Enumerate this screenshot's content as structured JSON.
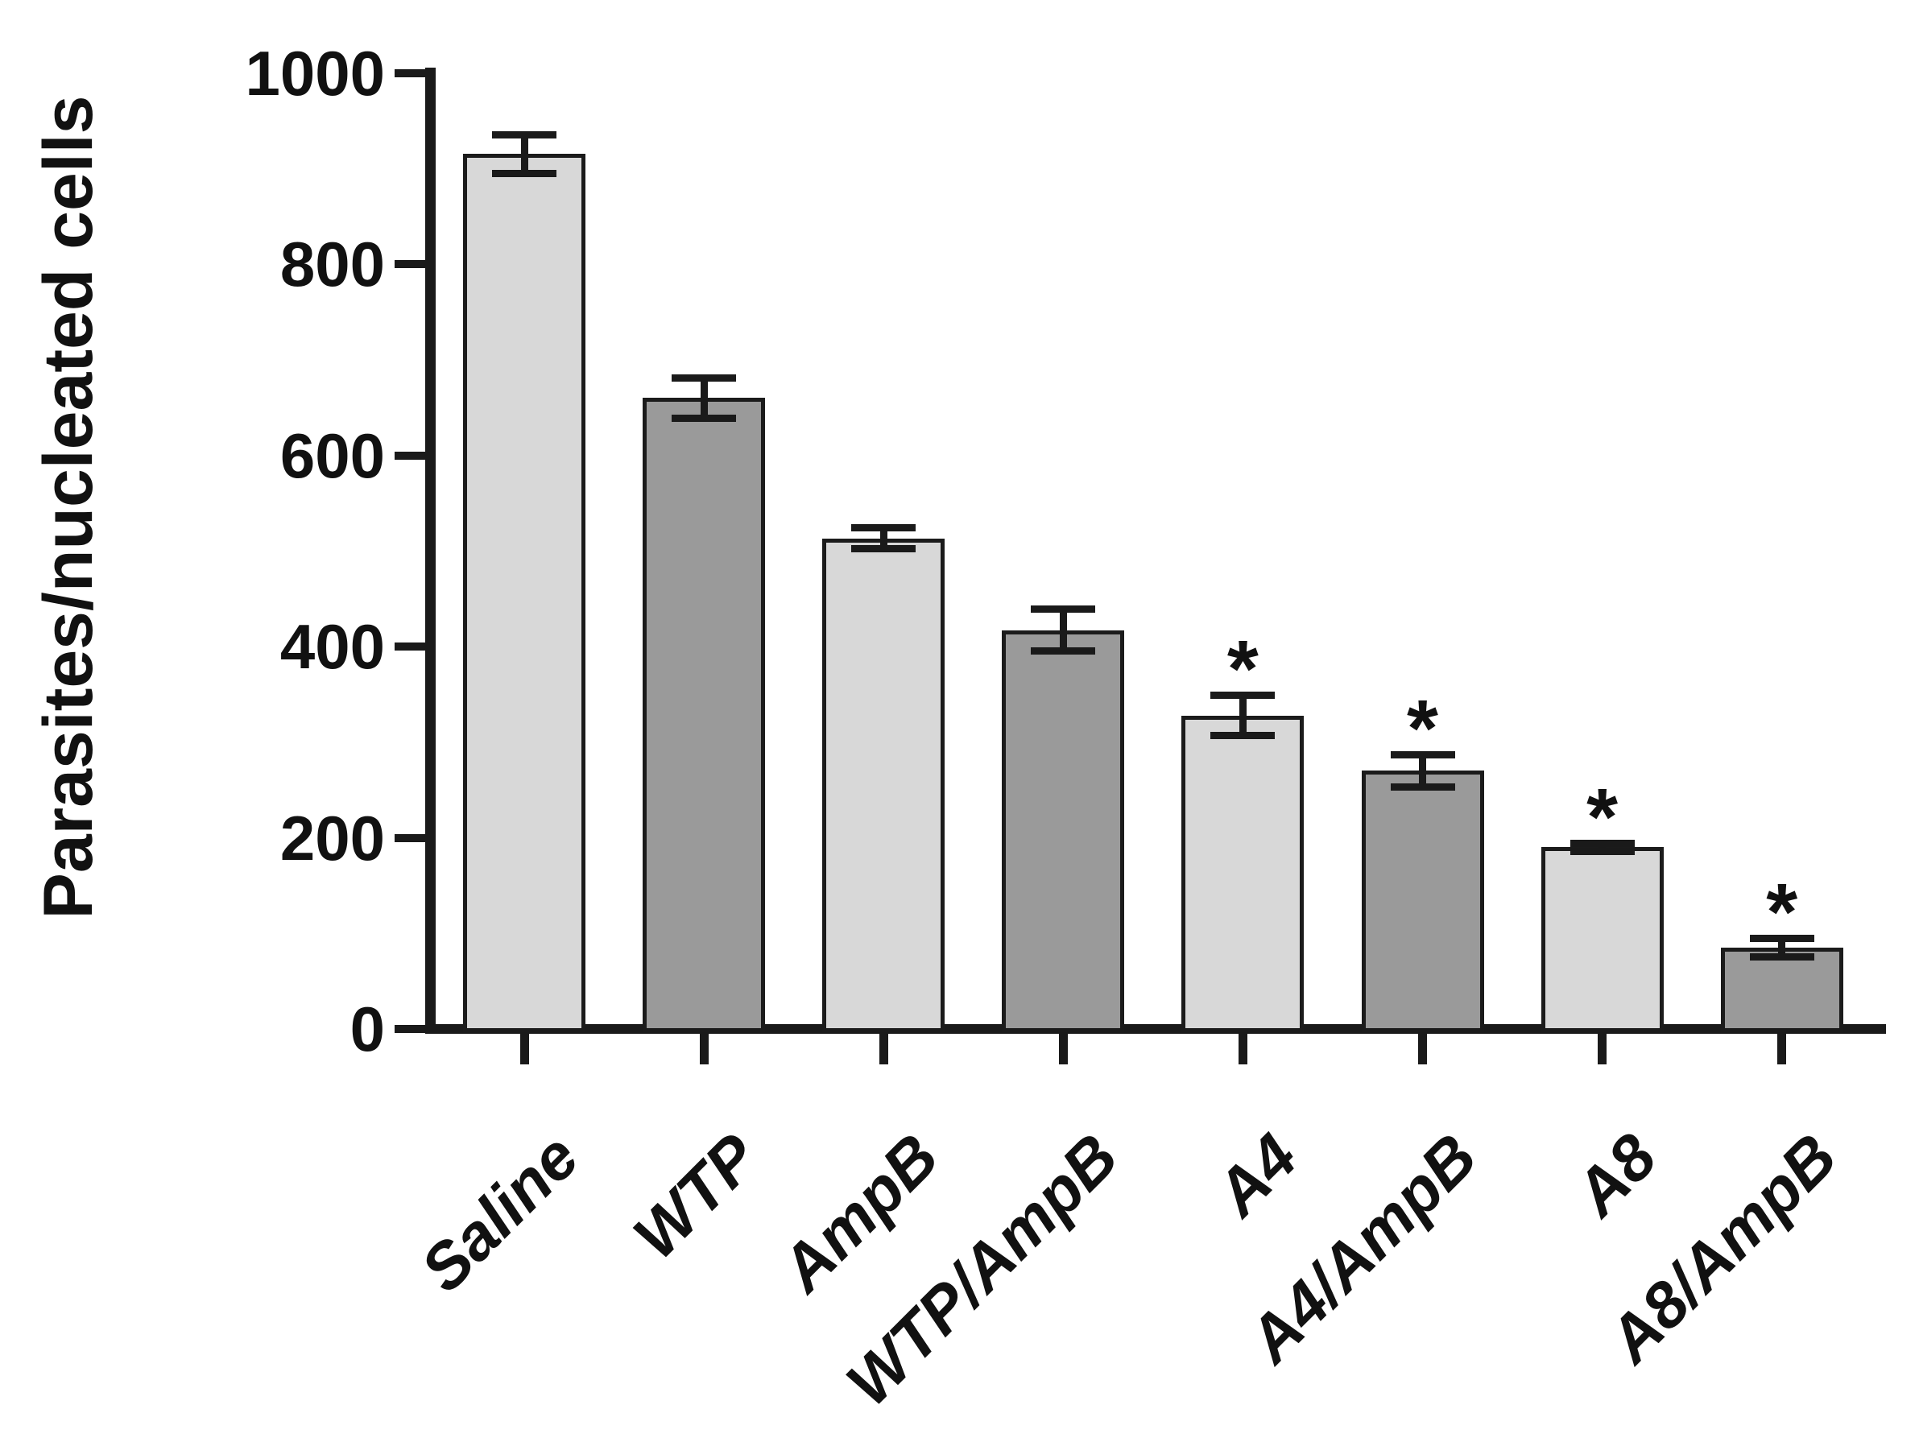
{
  "figure": {
    "background": "#ffffff"
  },
  "chart_data": {
    "type": "bar",
    "title": "",
    "ylabel": "Parasites/nucleated cells",
    "xlabel": "",
    "ylim": [
      0,
      1000
    ],
    "yticks": [
      0,
      200,
      400,
      600,
      800,
      1000
    ],
    "grid": false,
    "legend": false,
    "categories": [
      "Saline",
      "WTP",
      "AmpB",
      "WTP/AmpB",
      "A4",
      "A4/AmpB",
      "A8",
      "A8/AmpB"
    ],
    "series": [
      {
        "name": "Parasites/nucleated cells",
        "values": [
          915,
          660,
          513,
          417,
          328,
          270,
          190,
          85
        ],
        "errors": [
          20,
          21,
          11,
          22,
          21,
          17,
          4,
          10
        ]
      }
    ],
    "significance_marks": [
      "",
      "",
      "",
      "",
      "*",
      "*",
      "*",
      "*"
    ],
    "bar_fill_colors": [
      "#d8d8d8",
      "#9a9a9a",
      "#d8d8d8",
      "#9a9a9a",
      "#d8d8d8",
      "#9a9a9a",
      "#d8d8d8",
      "#9a9a9a"
    ],
    "bar_border_color": "#1b1b1b",
    "error_bar_color": "#1a1a1a",
    "axis_color": "#1a1a1a",
    "text_color": "#111111"
  }
}
